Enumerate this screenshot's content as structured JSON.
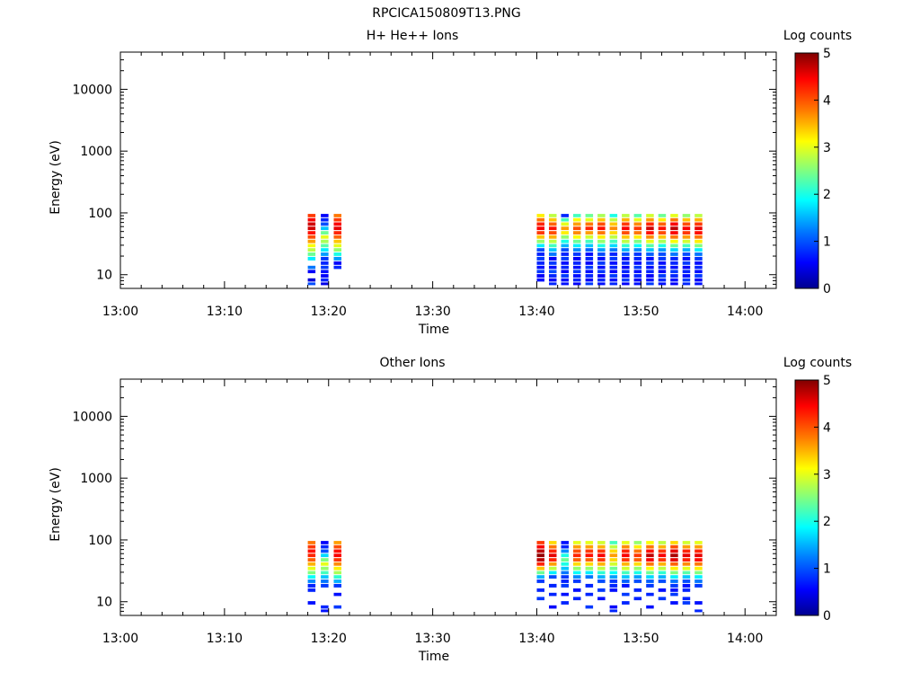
{
  "figure_title": "RPCICA150809T13.PNG",
  "colormap": [
    "#00008f",
    "#0000ff",
    "#0080ff",
    "#00ffff",
    "#80ff80",
    "#ffff00",
    "#ff8000",
    "#ff0000",
    "#800000"
  ],
  "chart_data": [
    {
      "type": "heatmap",
      "title": "H+ He++ Ions",
      "xlabel": "Time",
      "ylabel": "Energy (eV)",
      "x_ticks": [
        "13:00",
        "13:10",
        "13:20",
        "13:30",
        "13:40",
        "13:50",
        "14:00"
      ],
      "x_range": [
        "13:00",
        "14:03"
      ],
      "y_scale": "log",
      "y_ticks": [
        "10",
        "100",
        "1000",
        "10000"
      ],
      "y_range": [
        6,
        40000
      ],
      "colorbar": {
        "label": "Log counts",
        "range": [
          0,
          5
        ],
        "ticks": [
          "0",
          "1",
          "2",
          "3",
          "4",
          "5"
        ]
      },
      "energy_bins_eV": [
        7,
        8,
        9.5,
        11,
        13,
        15,
        18,
        21,
        25,
        29,
        34,
        40,
        47,
        55,
        65,
        76,
        89
      ],
      "time_bins": [
        "13:18:00",
        "13:19:15",
        "13:20:30",
        "13:40:00",
        "13:41:10",
        "13:42:20",
        "13:43:30",
        "13:44:40",
        "13:45:50",
        "13:47:00",
        "13:48:10",
        "13:49:20",
        "13:50:30",
        "13:51:40",
        "13:52:50",
        "13:54:00",
        "13:55:10"
      ],
      "columns": [
        {
          "t": 0,
          "values": [
            1.0,
            0.4,
            null,
            0.6,
            1.2,
            null,
            1.8,
            2.4,
            2.8,
            3.1,
            3.6,
            4.0,
            4.3,
            4.6,
            4.6,
            4.4,
            4.1
          ]
        },
        {
          "t": 1,
          "values": [
            0.5,
            0.8,
            0.6,
            0.7,
            0.9,
            0.8,
            0.9,
            1.4,
            1.8,
            2.3,
            2.7,
            3.0,
            2.4,
            1.6,
            1.0,
            0.8,
            0.6
          ]
        },
        {
          "t": 2,
          "values": [
            null,
            null,
            null,
            null,
            0.8,
            0.6,
            1.4,
            2.0,
            2.6,
            3.0,
            3.4,
            3.9,
            4.2,
            4.5,
            4.4,
            4.1,
            3.8
          ]
        },
        {
          "t": 3,
          "values": [
            null,
            0.7,
            0.6,
            0.9,
            0.7,
            0.8,
            0.9,
            0.8,
            1.0,
            1.8,
            2.6,
            3.4,
            4.1,
            4.4,
            4.2,
            3.8,
            3.2
          ]
        },
        {
          "t": 4,
          "values": [
            0.8,
            0.6,
            0.8,
            1.0,
            0.7,
            0.9,
            0.6,
            1.2,
            1.6,
            2.2,
            2.8,
            3.5,
            4.0,
            4.3,
            3.9,
            3.4,
            2.8
          ]
        },
        {
          "t": 5,
          "values": [
            0.7,
            0.7,
            0.9,
            0.6,
            0.8,
            0.7,
            0.9,
            0.8,
            1.0,
            1.5,
            2.0,
            2.6,
            3.2,
            3.6,
            3.0,
            2.2,
            0.8
          ]
        },
        {
          "t": 6,
          "values": [
            0.6,
            0.8,
            0.7,
            0.9,
            0.7,
            0.8,
            0.6,
            0.9,
            1.3,
            1.8,
            2.4,
            3.1,
            3.7,
            4.0,
            3.6,
            3.1,
            2.2
          ]
        },
        {
          "t": 7,
          "values": [
            0.9,
            0.6,
            0.8,
            0.7,
            0.9,
            0.6,
            0.8,
            0.7,
            1.1,
            1.6,
            2.2,
            2.9,
            3.6,
            4.2,
            3.8,
            3.0,
            2.4
          ]
        },
        {
          "t": 8,
          "values": [
            0.7,
            0.8,
            0.6,
            0.9,
            0.7,
            0.9,
            0.7,
            1.0,
            1.4,
            2.0,
            2.6,
            3.2,
            3.8,
            4.3,
            4.0,
            3.4,
            2.7
          ]
        },
        {
          "t": 9,
          "values": [
            0.8,
            0.7,
            0.9,
            0.6,
            0.8,
            0.7,
            0.9,
            0.8,
            1.2,
            1.7,
            2.2,
            2.8,
            3.3,
            3.7,
            3.4,
            2.8,
            2.0
          ]
        },
        {
          "t": 10,
          "values": [
            0.6,
            0.9,
            0.7,
            0.8,
            0.6,
            0.8,
            0.7,
            1.0,
            1.5,
            2.1,
            2.8,
            3.4,
            4.0,
            4.4,
            4.1,
            3.5,
            2.8
          ]
        },
        {
          "t": 11,
          "values": [
            0.7,
            0.6,
            0.8,
            0.7,
            0.9,
            0.7,
            0.8,
            0.9,
            1.3,
            1.9,
            2.5,
            3.2,
            3.8,
            4.1,
            3.7,
            3.0,
            2.3
          ]
        },
        {
          "t": 12,
          "values": [
            0.9,
            0.7,
            0.6,
            0.8,
            0.7,
            0.9,
            0.7,
            1.1,
            1.6,
            2.3,
            3.0,
            3.7,
            4.3,
            4.6,
            4.2,
            3.6,
            2.9
          ]
        },
        {
          "t": 13,
          "values": [
            0.7,
            0.8,
            0.9,
            0.6,
            0.8,
            0.7,
            0.9,
            1.0,
            1.4,
            2.0,
            2.7,
            3.4,
            4.0,
            4.3,
            3.9,
            3.2,
            2.4
          ]
        },
        {
          "t": 14,
          "values": [
            0.6,
            0.7,
            0.8,
            0.9,
            0.7,
            0.8,
            0.8,
            1.2,
            1.7,
            2.4,
            3.1,
            3.8,
            4.4,
            4.7,
            4.4,
            3.8,
            3.0
          ]
        },
        {
          "t": 15,
          "values": [
            0.8,
            0.9,
            0.7,
            0.8,
            0.6,
            0.9,
            0.7,
            1.0,
            1.5,
            2.2,
            2.9,
            3.6,
            4.1,
            4.4,
            4.0,
            3.4,
            2.6
          ]
        },
        {
          "t": 16,
          "values": [
            0.7,
            0.6,
            0.9,
            0.7,
            0.8,
            0.7,
            0.9,
            1.2,
            1.8,
            2.5,
            3.2,
            3.8,
            4.3,
            4.5,
            4.1,
            3.5,
            2.8
          ]
        }
      ]
    },
    {
      "type": "heatmap",
      "title": "Other Ions",
      "xlabel": "Time",
      "ylabel": "Energy (eV)",
      "x_ticks": [
        "13:00",
        "13:10",
        "13:20",
        "13:30",
        "13:40",
        "13:50",
        "14:00"
      ],
      "x_range": [
        "13:00",
        "14:03"
      ],
      "y_scale": "log",
      "y_ticks": [
        "10",
        "100",
        "1000",
        "10000"
      ],
      "y_range": [
        6,
        40000
      ],
      "colorbar": {
        "label": "Log counts",
        "range": [
          0,
          5
        ],
        "ticks": [
          "0",
          "1",
          "2",
          "3",
          "4",
          "5"
        ]
      },
      "energy_bins_eV": [
        7,
        8,
        9.5,
        11,
        13,
        15,
        18,
        21,
        25,
        29,
        34,
        40,
        47,
        55,
        65,
        76,
        89
      ],
      "time_bins": [
        "13:18:00",
        "13:19:15",
        "13:20:30",
        "13:40:00",
        "13:41:10",
        "13:42:20",
        "13:43:30",
        "13:44:40",
        "13:45:50",
        "13:47:00",
        "13:48:10",
        "13:49:20",
        "13:50:30",
        "13:51:40",
        "13:52:50",
        "13:54:00",
        "13:55:10"
      ],
      "columns": [
        {
          "t": 0,
          "values": [
            null,
            null,
            0.7,
            null,
            null,
            0.8,
            0.8,
            1.3,
            1.9,
            2.5,
            3.0,
            3.5,
            3.9,
            4.2,
            4.3,
            4.1,
            3.8
          ]
        },
        {
          "t": 1,
          "values": [
            0.7,
            0.8,
            null,
            null,
            null,
            null,
            0.9,
            1.2,
            1.6,
            2.2,
            2.6,
            3.0,
            2.5,
            1.7,
            1.0,
            0.8,
            0.6
          ]
        },
        {
          "t": 2,
          "values": [
            null,
            0.9,
            null,
            null,
            0.7,
            null,
            0.9,
            1.5,
            2.1,
            2.7,
            3.2,
            3.7,
            4.1,
            4.4,
            4.3,
            4.0,
            3.6
          ]
        },
        {
          "t": 3,
          "values": [
            null,
            null,
            null,
            0.9,
            null,
            0.8,
            null,
            0.9,
            1.5,
            2.4,
            3.4,
            4.2,
            4.7,
            4.9,
            4.7,
            4.4,
            4.1
          ]
        },
        {
          "t": 4,
          "values": [
            null,
            0.6,
            null,
            null,
            0.8,
            null,
            0.8,
            null,
            1.0,
            1.8,
            2.8,
            3.6,
            4.2,
            4.5,
            4.2,
            3.8,
            3.3
          ]
        },
        {
          "t": 5,
          "values": [
            null,
            null,
            0.8,
            null,
            0.7,
            null,
            0.9,
            0.8,
            0.9,
            1.2,
            1.6,
            2.0,
            2.4,
            2.0,
            1.3,
            0.8,
            0.7
          ]
        },
        {
          "t": 6,
          "values": [
            null,
            null,
            null,
            0.8,
            null,
            0.7,
            null,
            0.9,
            1.3,
            1.9,
            2.6,
            3.3,
            3.9,
            4.2,
            4.0,
            3.6,
            3.0
          ]
        },
        {
          "t": 7,
          "values": [
            null,
            0.9,
            null,
            null,
            0.8,
            null,
            0.8,
            null,
            1.2,
            1.8,
            2.6,
            3.3,
            3.9,
            4.3,
            4.1,
            3.6,
            3.0
          ]
        },
        {
          "t": 8,
          "values": [
            null,
            null,
            null,
            0.7,
            null,
            0.9,
            null,
            1.0,
            1.5,
            2.1,
            2.8,
            3.5,
            4.1,
            4.4,
            4.1,
            3.5,
            2.9
          ]
        },
        {
          "t": 9,
          "values": [
            0.8,
            0.6,
            null,
            null,
            null,
            0.7,
            0.8,
            0.9,
            1.4,
            1.9,
            2.4,
            2.9,
            3.3,
            3.6,
            3.3,
            2.8,
            2.2
          ]
        },
        {
          "t": 10,
          "values": [
            null,
            null,
            0.8,
            null,
            0.9,
            null,
            0.7,
            1.1,
            1.6,
            2.2,
            2.9,
            3.5,
            4.1,
            4.4,
            4.2,
            3.7,
            3.0
          ]
        },
        {
          "t": 11,
          "values": [
            null,
            null,
            null,
            0.8,
            null,
            0.8,
            null,
            1.0,
            1.4,
            2.0,
            2.6,
            3.3,
            3.9,
            4.1,
            3.8,
            3.2,
            2.6
          ]
        },
        {
          "t": 12,
          "values": [
            null,
            0.7,
            null,
            null,
            0.8,
            null,
            0.9,
            1.1,
            1.7,
            2.4,
            3.1,
            3.8,
            4.4,
            4.7,
            4.3,
            3.8,
            3.1
          ]
        },
        {
          "t": 13,
          "values": [
            null,
            null,
            null,
            0.9,
            null,
            0.7,
            null,
            1.0,
            1.5,
            2.1,
            2.8,
            3.5,
            4.1,
            4.4,
            4.1,
            3.5,
            2.8
          ]
        },
        {
          "t": 14,
          "values": [
            null,
            null,
            0.7,
            null,
            0.9,
            0.7,
            0.9,
            1.2,
            1.8,
            2.5,
            3.2,
            3.9,
            4.5,
            4.8,
            4.5,
            4.0,
            3.3
          ]
        },
        {
          "t": 15,
          "values": [
            null,
            null,
            0.9,
            0.8,
            null,
            0.8,
            0.7,
            1.0,
            1.6,
            2.3,
            3.0,
            3.7,
            4.2,
            4.5,
            4.2,
            3.6,
            2.9
          ]
        },
        {
          "t": 16,
          "values": [
            0.8,
            null,
            0.7,
            null,
            null,
            null,
            0.9,
            1.2,
            1.8,
            2.5,
            3.2,
            3.8,
            4.3,
            4.5,
            4.2,
            3.6,
            3.0
          ]
        }
      ]
    }
  ]
}
